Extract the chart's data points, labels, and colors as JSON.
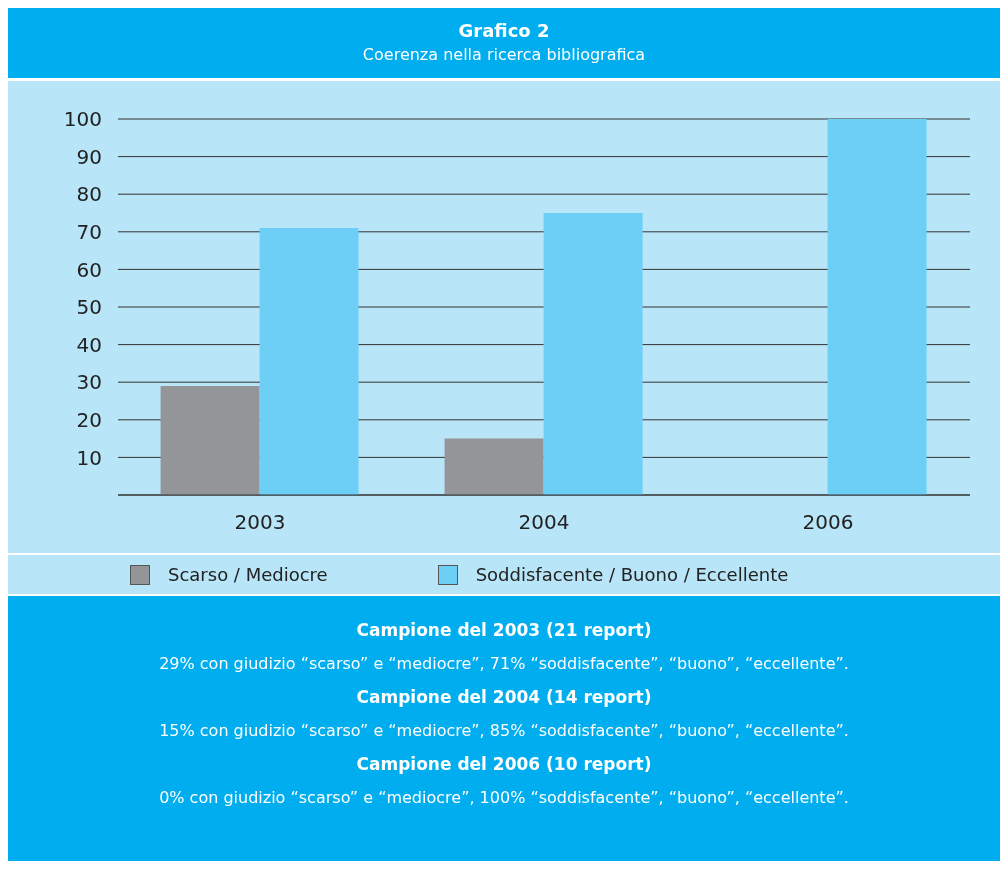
{
  "chart_data": {
    "type": "bar",
    "title": "Grafico 2",
    "subtitle": "Coerenza nella ricerca bibliografica",
    "categories": [
      "2003",
      "2004",
      "2006"
    ],
    "series": [
      {
        "name": "Scarso / Mediocre",
        "color": "#939598",
        "values": [
          29,
          15,
          0
        ]
      },
      {
        "name": "Soddisfacente / Buono / Eccellente",
        "color": "#6dcff6",
        "values": [
          71,
          75,
          100
        ]
      }
    ],
    "ylim": [
      0,
      100
    ],
    "yticks": [
      {
        "value": 0,
        "label": null
      },
      10,
      20,
      30,
      40,
      50,
      60,
      70,
      80,
      90,
      100
    ],
    "grid": "y",
    "legend": "bottom",
    "annotations": [
      "Campione del 2003 (21 report)",
      "29% con giudizio “scarso” e “mediocre”, 71% “soddisfacente”, “buono”, “eccellente”.",
      "Campione del 2004 (14 report)",
      "15% con giudizio “scarso” e “mediocre”, 85% “soddisfacente”, “buono”, “eccellente”.",
      "Campione del 2006 (10 report)",
      "0% con giudizio “scarso” e “mediocre”, 100% “soddisfacente”, “buono”, “eccellente”."
    ]
  }
}
